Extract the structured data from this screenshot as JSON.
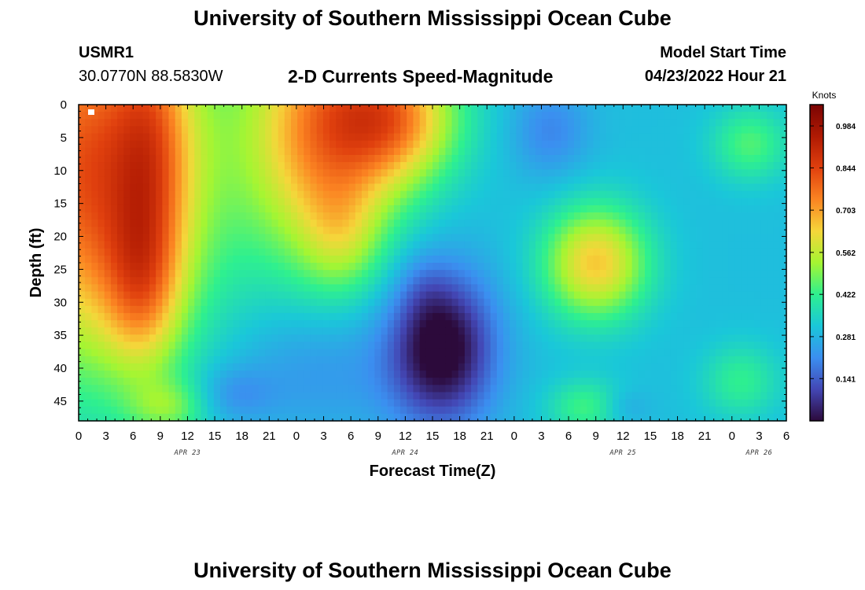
{
  "header": {
    "title": "University of Southern Mississippi Ocean Cube",
    "station_id": "USMR1",
    "station_coords": "30.0770N  88.5830W",
    "subtitle": "2-D Currents Speed-Magnitude",
    "model_label": "Model Start Time",
    "model_time": "04/23/2022 Hour 21"
  },
  "footer": {
    "title": "University of Southern Mississippi Ocean Cube"
  },
  "chart_data": {
    "type": "heatmap",
    "xlabel": "Forecast Time(Z)",
    "ylabel": "Depth (ft)",
    "colorbar_label": "Knots",
    "colorbar_ticks": [
      "0.984",
      "0.844",
      "0.703",
      "0.562",
      "0.422",
      "0.281",
      "0.141"
    ],
    "colorbar_values": [
      0.984,
      0.844,
      0.703,
      0.562,
      0.422,
      0.281,
      0.141
    ],
    "colorbar_range": [
      0.0,
      1.055
    ],
    "x_tick_labels": [
      "0",
      "3",
      "6",
      "9",
      "12",
      "15",
      "18",
      "21",
      "0",
      "3",
      "6",
      "9",
      "12",
      "15",
      "18",
      "21",
      "0",
      "3",
      "6",
      "9",
      "12",
      "15",
      "18",
      "21",
      "0",
      "3",
      "6"
    ],
    "date_labels": [
      "APR 23",
      "APR 24",
      "APR 25",
      "APR 26"
    ],
    "date_label_hours": [
      12,
      36,
      60,
      75
    ],
    "xlim_hours": [
      0,
      78
    ],
    "y_ticks": [
      0,
      5,
      10,
      15,
      20,
      25,
      30,
      35,
      40,
      45
    ],
    "ylim": [
      0,
      48
    ],
    "colormap": [
      "#2c0a3b",
      "#4347b5",
      "#3b8ff0",
      "#1ac7d9",
      "#2ef08f",
      "#a5f532",
      "#f5d63a",
      "#fb8422",
      "#e0400e",
      "#b01a03",
      "#7a0403"
    ],
    "blobs": [
      {
        "hour": 1,
        "depth": 10,
        "hour_spread": 9,
        "depth_spread": 20,
        "weight": 0.52
      },
      {
        "hour": 7,
        "depth": 28,
        "hour_spread": 3,
        "depth_spread": 9,
        "weight": 0.22
      },
      {
        "hour": 8,
        "depth": 6,
        "hour_spread": 3,
        "depth_spread": 14,
        "weight": 0.2
      },
      {
        "hour": 27,
        "depth": 4,
        "hour_spread": 6,
        "depth_spread": 14,
        "weight": 0.42
      },
      {
        "hour": 35,
        "depth": 2,
        "hour_spread": 5,
        "depth_spread": 7,
        "weight": 0.35
      },
      {
        "hour": 29,
        "depth": 20,
        "hour_spread": 3,
        "depth_spread": 6,
        "weight": 0.12
      },
      {
        "hour": 17,
        "depth": 44,
        "hour_spread": 3,
        "depth_spread": 3,
        "weight": -0.08
      },
      {
        "hour": 40,
        "depth": 37,
        "hour_spread": 4,
        "depth_spread": 8,
        "weight": -0.34
      },
      {
        "hour": 38,
        "depth": 28,
        "hour_spread": 2,
        "depth_spread": 4,
        "weight": -0.04
      },
      {
        "hour": 26,
        "depth": 40,
        "hour_spread": 7,
        "depth_spread": 7,
        "weight": -0.08
      },
      {
        "hour": 52,
        "depth": 4,
        "hour_spread": 3,
        "depth_spread": 5,
        "weight": -0.1
      },
      {
        "hour": 57,
        "depth": 24,
        "hour_spread": 4,
        "depth_spread": 6,
        "weight": 0.35
      },
      {
        "hour": 74,
        "depth": 6,
        "hour_spread": 3,
        "depth_spread": 4,
        "weight": 0.15
      },
      {
        "hour": 73,
        "depth": 42,
        "hour_spread": 3,
        "depth_spread": 4,
        "weight": 0.12
      },
      {
        "hour": 56,
        "depth": 46,
        "hour_spread": 3,
        "depth_spread": 3,
        "weight": 0.14
      },
      {
        "hour": 10,
        "depth": 46,
        "hour_spread": 3,
        "depth_spread": 3,
        "weight": 0.14
      },
      {
        "hour": 60,
        "depth": 46,
        "hour_spread": 2,
        "depth_spread": 2,
        "weight": -0.06
      }
    ],
    "base_value": 0.3
  }
}
